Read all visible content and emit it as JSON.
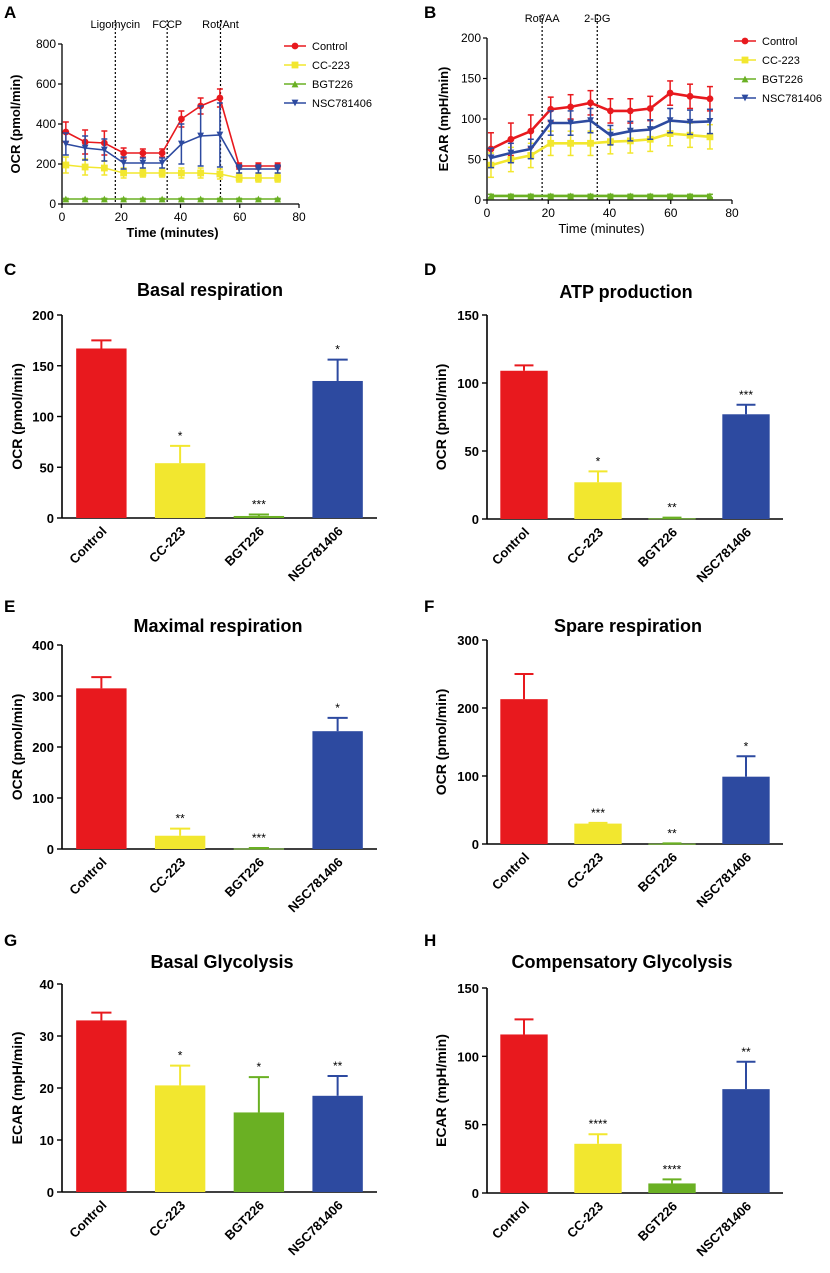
{
  "figure": {
    "panels": [
      {
        "id": "A",
        "chart_data": {
          "type": "line",
          "title": "",
          "xlabel": "Time (minutes)",
          "ylabel": "OCR (pmol/min)",
          "xlim": [
            0,
            80
          ],
          "ylim": [
            0,
            800
          ],
          "xticks": [
            0,
            20,
            40,
            60,
            80
          ],
          "yticks": [
            0,
            200,
            400,
            600,
            800
          ],
          "vlines": [
            {
              "x": 18,
              "label": "Ligomycin"
            },
            {
              "x": 35.5,
              "label": "FCCP"
            },
            {
              "x": 53.5,
              "label": "Rot/Ant"
            }
          ],
          "x": [
            1.3,
            7.8,
            14.3,
            20.8,
            27.3,
            33.8,
            40.3,
            46.8,
            53.3,
            59.8,
            66.3,
            72.8
          ],
          "series": [
            {
              "name": "Control",
              "color": "#e8191e",
              "marker": "circle",
              "values": [
                360,
                310,
                305,
                255,
                255,
                255,
                425,
                490,
                530,
                190,
                190,
                190
              ],
              "errors": [
                50,
                60,
                60,
                25,
                20,
                20,
                40,
                40,
                45,
                15,
                15,
                15
              ]
            },
            {
              "name": "CC-223",
              "color": "#f2e72f",
              "marker": "square",
              "values": [
                195,
                185,
                180,
                155,
                155,
                155,
                155,
                155,
                150,
                130,
                130,
                130
              ],
              "errors": [
                40,
                40,
                35,
                25,
                20,
                20,
                25,
                25,
                25,
                20,
                20,
                20
              ]
            },
            {
              "name": "BGT226",
              "color": "#6ab023",
              "marker": "triangle-up",
              "values": [
                25,
                25,
                25,
                25,
                25,
                25,
                25,
                25,
                25,
                25,
                25,
                25
              ],
              "errors": [
                3,
                3,
                3,
                3,
                3,
                3,
                3,
                3,
                3,
                3,
                3,
                3
              ]
            },
            {
              "name": "NSC781406",
              "color": "#2d4aa0",
              "marker": "triangle-down",
              "values": [
                300,
                280,
                270,
                205,
                205,
                205,
                300,
                340,
                345,
                175,
                175,
                175
              ],
              "errors": [
                55,
                60,
                55,
                30,
                25,
                25,
                100,
                150,
                160,
                20,
                20,
                20
              ]
            }
          ],
          "legend": "top-right"
        }
      },
      {
        "id": "B",
        "chart_data": {
          "type": "line",
          "title": "",
          "xlabel": "Time (minutes)",
          "ylabel": "ECAR (mpH/min)",
          "xlim": [
            0,
            80
          ],
          "ylim": [
            0,
            200
          ],
          "xticks": [
            0,
            20,
            40,
            60,
            80
          ],
          "yticks": [
            0,
            50,
            100,
            150,
            200
          ],
          "vlines": [
            {
              "x": 18,
              "label": "Rot/AA"
            },
            {
              "x": 36,
              "label": "2-DG"
            }
          ],
          "x": [
            1.3,
            7.8,
            14.3,
            20.8,
            27.3,
            33.8,
            40.3,
            46.8,
            53.3,
            59.8,
            66.3,
            72.8
          ],
          "series": [
            {
              "name": "Control",
              "color": "#e8191e",
              "marker": "circle",
              "values": [
                63,
                75,
                85,
                112,
                115,
                120,
                110,
                110,
                113,
                132,
                128,
                125
              ],
              "errors": [
                20,
                20,
                20,
                15,
                15,
                15,
                15,
                15,
                15,
                15,
                15,
                15
              ]
            },
            {
              "name": "CC-223",
              "color": "#f2e72f",
              "marker": "square",
              "values": [
                43,
                50,
                55,
                70,
                70,
                70,
                72,
                73,
                75,
                82,
                80,
                78
              ],
              "errors": [
                15,
                15,
                15,
                15,
                15,
                15,
                15,
                15,
                15,
                15,
                15,
                15
              ]
            },
            {
              "name": "BGT226",
              "color": "#6ab023",
              "marker": "triangle-up",
              "values": [
                5,
                5,
                5,
                5,
                5,
                5,
                5,
                5,
                5,
                5,
                5,
                5
              ],
              "errors": [
                2,
                2,
                2,
                2,
                2,
                2,
                2,
                2,
                2,
                2,
                2,
                2
              ]
            },
            {
              "name": "NSC781406",
              "color": "#2d4aa0",
              "marker": "triangle-down",
              "values": [
                52,
                58,
                63,
                95,
                95,
                98,
                80,
                85,
                87,
                98,
                96,
                97
              ],
              "errors": [
                12,
                12,
                12,
                15,
                15,
                15,
                12,
                12,
                12,
                15,
                15,
                15
              ]
            }
          ],
          "legend": "top-right"
        }
      },
      {
        "id": "C",
        "chart_data": {
          "type": "bar",
          "title": "Basal respiration",
          "xlabel": "",
          "ylabel": "OCR (pmol/min)",
          "ylim": [
            0,
            200
          ],
          "yticks": [
            0,
            50,
            100,
            150,
            200
          ],
          "categories": [
            "Control",
            "CC-223",
            "BGT226",
            "NSC781406"
          ],
          "values": [
            167,
            54,
            2,
            135
          ],
          "errors": [
            8,
            17,
            1.5,
            21
          ],
          "significance": [
            "",
            "*",
            "***",
            "*"
          ],
          "colors": [
            "#e8191e",
            "#f2e72f",
            "#6ab023",
            "#2d4aa0"
          ]
        }
      },
      {
        "id": "D",
        "chart_data": {
          "type": "bar",
          "title": "ATP production",
          "xlabel": "",
          "ylabel": "OCR (pmol/min)",
          "ylim": [
            0,
            150
          ],
          "yticks": [
            0,
            50,
            100,
            150
          ],
          "categories": [
            "Control",
            "CC-223",
            "BGT226",
            "NSC781406"
          ],
          "values": [
            109,
            27,
            0.5,
            77
          ],
          "errors": [
            4,
            8,
            0.5,
            7
          ],
          "significance": [
            "",
            "*",
            "**",
            "***"
          ],
          "colors": [
            "#e8191e",
            "#f2e72f",
            "#6ab023",
            "#2d4aa0"
          ]
        }
      },
      {
        "id": "E",
        "chart_data": {
          "type": "bar",
          "title": "Maximal respiration",
          "xlabel": "",
          "ylabel": "OCR (pmol/min)",
          "ylim": [
            0,
            400
          ],
          "yticks": [
            0,
            100,
            200,
            300,
            400
          ],
          "categories": [
            "Control",
            "CC-223",
            "BGT226",
            "NSC781406"
          ],
          "values": [
            315,
            26,
            1,
            231
          ],
          "errors": [
            22,
            14,
            1,
            26
          ],
          "significance": [
            "",
            "**",
            "***",
            "*"
          ],
          "colors": [
            "#e8191e",
            "#f2e72f",
            "#6ab023",
            "#2d4aa0"
          ]
        }
      },
      {
        "id": "F",
        "chart_data": {
          "type": "bar",
          "title": "Spare respiration",
          "xlabel": "",
          "ylabel": "OCR (pmol/min)",
          "ylim": [
            0,
            300
          ],
          "yticks": [
            0,
            100,
            200,
            300
          ],
          "categories": [
            "Control",
            "CC-223",
            "BGT226",
            "NSC781406"
          ],
          "values": [
            213,
            30,
            0.5,
            99
          ],
          "errors": [
            37,
            1,
            0.5,
            30
          ],
          "significance": [
            "",
            "***",
            "**",
            "*"
          ],
          "colors": [
            "#e8191e",
            "#f2e72f",
            "#6ab023",
            "#2d4aa0"
          ]
        }
      },
      {
        "id": "G",
        "chart_data": {
          "type": "bar",
          "title": "Basal Glycolysis",
          "xlabel": "",
          "ylabel": "ECAR (mpH/min)",
          "ylim": [
            0,
            40
          ],
          "yticks": [
            0,
            10,
            20,
            30,
            40
          ],
          "categories": [
            "Control",
            "CC-223",
            "BGT226",
            "NSC781406"
          ],
          "values": [
            33,
            20.5,
            15.3,
            18.5
          ],
          "errors": [
            1.5,
            3.8,
            6.8,
            3.8
          ],
          "significance": [
            "",
            "*",
            "*",
            "**"
          ],
          "colors": [
            "#e8191e",
            "#f2e72f",
            "#6ab023",
            "#2d4aa0"
          ]
        }
      },
      {
        "id": "H",
        "chart_data": {
          "type": "bar",
          "title": "Compensatory Glycolysis",
          "xlabel": "",
          "ylabel": "ECAR (mpH/min)",
          "ylim": [
            0,
            150
          ],
          "yticks": [
            0,
            50,
            100,
            150
          ],
          "categories": [
            "Control",
            "CC-223",
            "BGT226",
            "NSC781406"
          ],
          "values": [
            116,
            36,
            7,
            76
          ],
          "errors": [
            11,
            7,
            3,
            20
          ],
          "significance": [
            "",
            "****",
            "****",
            "**"
          ],
          "colors": [
            "#e8191e",
            "#f2e72f",
            "#6ab023",
            "#2d4aa0"
          ]
        }
      }
    ]
  }
}
